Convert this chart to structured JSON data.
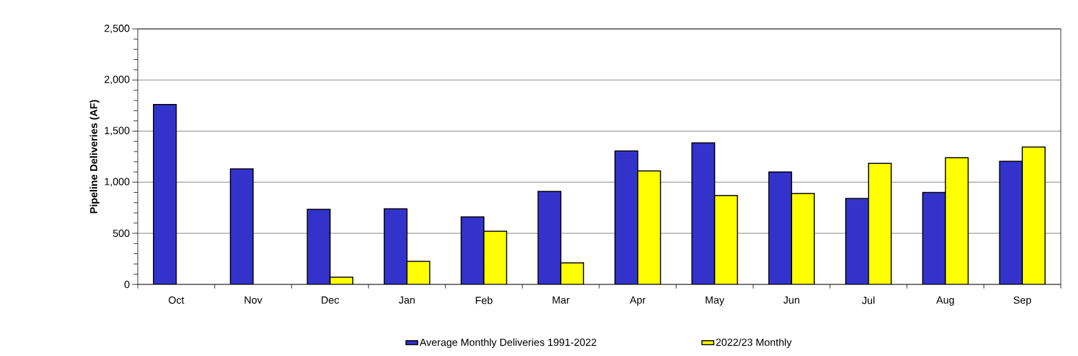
{
  "chart_data": {
    "type": "bar",
    "ylabel": "Pipeline Deliveries (AF)",
    "categories": [
      "Oct",
      "Nov",
      "Dec",
      "Jan",
      "Feb",
      "Mar",
      "Apr",
      "May",
      "Jun",
      "Jul",
      "Aug",
      "Sep"
    ],
    "series": [
      {
        "name": "Average Monthly Deliveries 1991-2022",
        "color": "#3333cc",
        "values": [
          1760,
          1130,
          735,
          740,
          660,
          910,
          1305,
          1385,
          1100,
          840,
          900,
          1205
        ]
      },
      {
        "name": "2022/23 Monthly",
        "color": "#ffff00",
        "values": [
          null,
          null,
          70,
          225,
          520,
          210,
          1110,
          870,
          890,
          1185,
          1240,
          1345
        ]
      }
    ],
    "ylim": [
      0,
      2500
    ],
    "yticks": [
      0,
      500,
      {
        "value": 1000,
        "label": "1,000"
      },
      {
        "value": 1500,
        "label": "1,500"
      },
      {
        "value": 2000,
        "label": "2,000"
      },
      {
        "value": 2500,
        "label": "2,500"
      }
    ],
    "grid": "y",
    "legend": "bottom"
  }
}
